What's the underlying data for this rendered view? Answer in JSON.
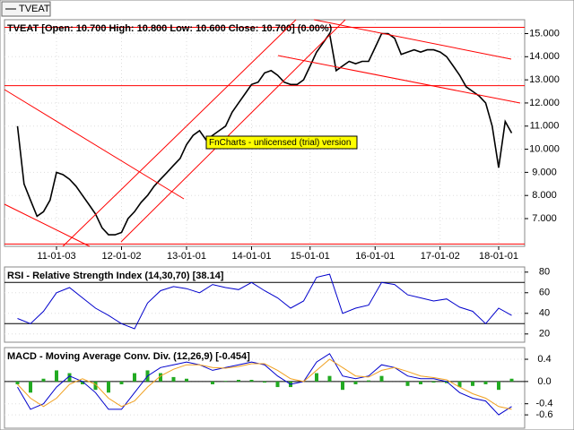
{
  "tab": "TVEAT",
  "watermark": "FnCharts - unlicensed (trial) version",
  "chart_data": [
    {
      "type": "line",
      "title": "TVEAT [Open: 10.700  High: 10.800  Low: 10.600  Close: 10.700] (0.00%)",
      "color": "#000000",
      "x": [
        2,
        3,
        4,
        5,
        6,
        7,
        8,
        9,
        10,
        11,
        12,
        13,
        14,
        15,
        16,
        17,
        18,
        19,
        20,
        21,
        22,
        23,
        24,
        25,
        26,
        27,
        28,
        29,
        30,
        31,
        32,
        33,
        34,
        35,
        36,
        37,
        38,
        39,
        40,
        41,
        42,
        43,
        44,
        45,
        46,
        47,
        48,
        49,
        50,
        51,
        52,
        53,
        54,
        55,
        56,
        57,
        58,
        59,
        60,
        61,
        62,
        63,
        64,
        65,
        66,
        67,
        68,
        69,
        70,
        71,
        72,
        73,
        74,
        75,
        76,
        77,
        78
      ],
      "values": [
        11.0,
        8.5,
        7.8,
        7.1,
        7.3,
        7.8,
        9.0,
        8.9,
        8.7,
        8.4,
        8.0,
        7.6,
        7.2,
        6.6,
        6.3,
        6.3,
        6.4,
        7.0,
        7.3,
        7.7,
        8.0,
        8.4,
        8.7,
        9.0,
        9.3,
        9.6,
        10.2,
        10.6,
        10.8,
        10.4,
        10.6,
        10.8,
        11.0,
        11.6,
        12.0,
        12.4,
        12.8,
        12.9,
        13.3,
        13.4,
        13.2,
        12.9,
        12.8,
        12.8,
        13.0,
        13.6,
        14.2,
        14.6,
        15.0,
        13.4,
        13.6,
        13.8,
        13.7,
        13.8,
        13.8,
        14.4,
        15.0,
        15.0,
        14.8,
        14.1,
        14.2,
        14.3,
        14.2,
        14.3,
        14.3,
        14.2,
        14.0,
        13.6,
        13.2,
        12.7,
        12.5,
        12.3,
        12.0,
        11.0,
        9.2,
        11.2,
        10.7
      ],
      "xlim": [
        0,
        80
      ],
      "xticks": [
        {
          "value": 8,
          "label": "11-01-03"
        },
        {
          "value": 18,
          "label": "12-01-02"
        },
        {
          "value": 28,
          "label": "13-01-01"
        },
        {
          "value": 38,
          "label": "14-01-01"
        },
        {
          "value": 47,
          "label": "15-01-01"
        },
        {
          "value": 57,
          "label": "16-01-01"
        },
        {
          "value": 67,
          "label": "17-01-02"
        },
        {
          "value": 76,
          "label": "18-01-01"
        }
      ],
      "ylim": [
        5.8,
        15.6
      ],
      "yticks": [
        {
          "value": 7,
          "label": "7.000"
        },
        {
          "value": 8,
          "label": "8.000"
        },
        {
          "value": 9,
          "label": "9.000"
        },
        {
          "value": 10,
          "label": "10.000"
        },
        {
          "value": 11,
          "label": "11.000"
        },
        {
          "value": 12,
          "label": "12.000"
        },
        {
          "value": 13,
          "label": "13.000"
        },
        {
          "value": 14,
          "label": "14.000"
        },
        {
          "value": 15,
          "label": "15.000"
        }
      ],
      "hlines": [
        15.27,
        12.75,
        5.9
      ],
      "hline_color": "#ff0000",
      "grid": true
    },
    {
      "type": "line",
      "title": "RSI - Relative Strength Index (14,30,70) [38.14]",
      "color": "#0000cc",
      "x": [
        2,
        4,
        6,
        8,
        10,
        12,
        14,
        16,
        18,
        20,
        22,
        24,
        26,
        28,
        30,
        32,
        34,
        36,
        38,
        40,
        42,
        44,
        46,
        48,
        50,
        52,
        54,
        56,
        58,
        60,
        62,
        64,
        66,
        68,
        70,
        72,
        74,
        76,
        78
      ],
      "values": [
        35,
        30,
        42,
        60,
        65,
        55,
        45,
        38,
        30,
        25,
        50,
        62,
        66,
        64,
        60,
        68,
        65,
        63,
        70,
        62,
        55,
        45,
        52,
        75,
        78,
        40,
        45,
        48,
        70,
        68,
        58,
        55,
        52,
        54,
        46,
        42,
        30,
        45,
        38
      ],
      "xlim": [
        0,
        80
      ],
      "ylim": [
        12,
        85
      ],
      "yticks": [
        20,
        40,
        60,
        80
      ],
      "hlines": [
        30,
        70
      ],
      "hline_color": "#000000",
      "grid": true
    },
    {
      "type": "line",
      "title": "MACD - Moving Average Conv. Div. (12,26,9) [-0.454]",
      "x": [
        2,
        4,
        6,
        8,
        10,
        12,
        14,
        16,
        18,
        20,
        22,
        24,
        26,
        28,
        30,
        32,
        34,
        36,
        38,
        40,
        42,
        44,
        46,
        48,
        50,
        52,
        54,
        56,
        58,
        60,
        62,
        64,
        66,
        68,
        70,
        72,
        74,
        76,
        78
      ],
      "series": [
        {
          "style": "bar",
          "color": "#22aa22",
          "values": [
            -0.05,
            -0.2,
            0.05,
            0.2,
            0.15,
            -0.05,
            -0.15,
            -0.2,
            -0.05,
            0.15,
            0.2,
            0.15,
            0.08,
            0.05,
            0.0,
            -0.05,
            0.01,
            0.03,
            0.03,
            -0.02,
            -0.1,
            -0.1,
            0.0,
            0.15,
            0.1,
            -0.15,
            -0.05,
            0.02,
            0.1,
            0.0,
            -0.08,
            -0.05,
            -0.02,
            -0.03,
            -0.1,
            -0.08,
            -0.05,
            -0.15,
            0.05
          ]
        },
        {
          "style": "line",
          "color": "#0000cc",
          "values": [
            -0.1,
            -0.5,
            -0.4,
            -0.1,
            0.1,
            0.0,
            -0.2,
            -0.5,
            -0.5,
            -0.2,
            0.1,
            0.25,
            0.3,
            0.35,
            0.3,
            0.2,
            0.25,
            0.3,
            0.35,
            0.3,
            0.1,
            -0.05,
            0.0,
            0.35,
            0.5,
            0.1,
            0.05,
            0.1,
            0.3,
            0.25,
            0.1,
            0.05,
            0.05,
            0.0,
            -0.2,
            -0.3,
            -0.35,
            -0.6,
            -0.45
          ]
        },
        {
          "style": "line",
          "color": "#f0a020",
          "values": [
            -0.05,
            -0.3,
            -0.45,
            -0.3,
            -0.05,
            0.05,
            -0.05,
            -0.3,
            -0.45,
            -0.35,
            -0.1,
            0.1,
            0.22,
            0.3,
            0.3,
            0.25,
            0.24,
            0.27,
            0.32,
            0.32,
            0.2,
            0.05,
            0.0,
            0.2,
            0.4,
            0.25,
            0.1,
            0.08,
            0.2,
            0.25,
            0.18,
            0.1,
            0.07,
            0.03,
            -0.1,
            -0.22,
            -0.3,
            -0.45,
            -0.5
          ]
        }
      ],
      "xlim": [
        0,
        80
      ],
      "ylim": [
        -0.84,
        0.61
      ],
      "yticks": [
        -0.6,
        -0.4,
        {
          "value": 0,
          "label": "0.0"
        },
        0.4
      ],
      "hlines": [
        0
      ],
      "hline_color": "#000000",
      "grid": true
    }
  ]
}
